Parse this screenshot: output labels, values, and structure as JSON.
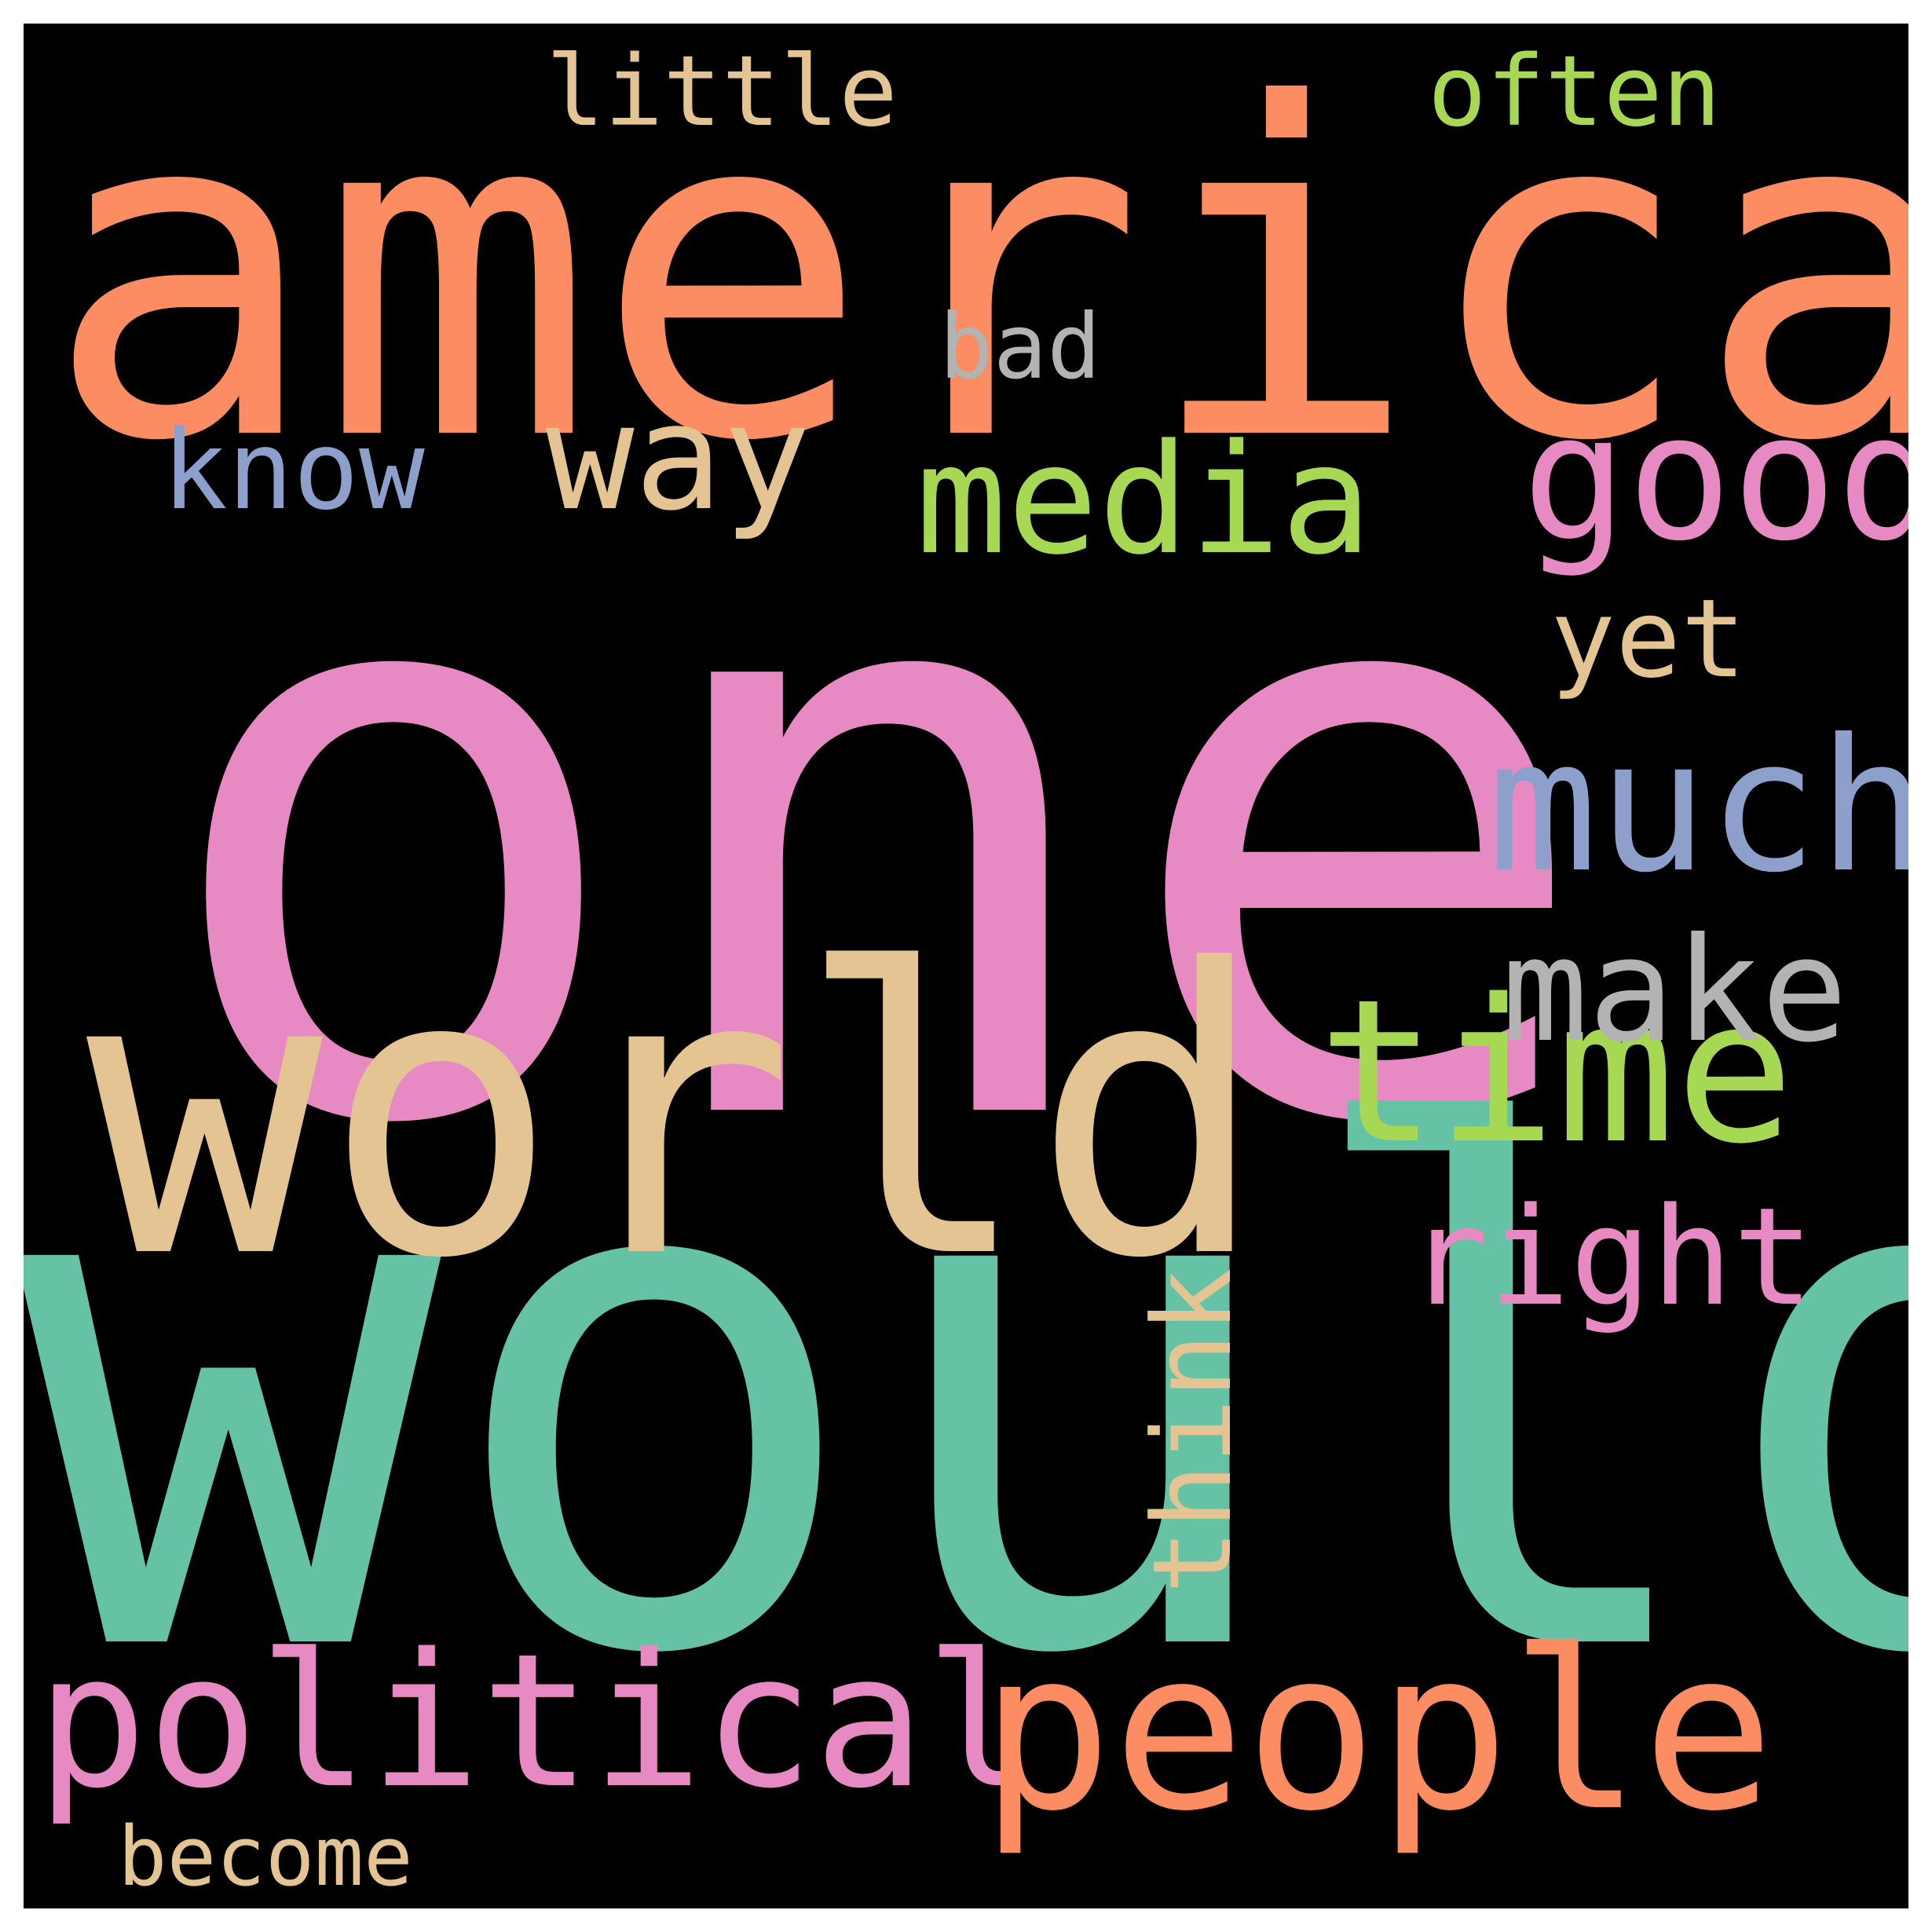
{
  "colors": {
    "background": "#000000",
    "frame_border": "#ffffff"
  },
  "words": [
    {
      "key": "one",
      "text": "one",
      "color": "#e78ac3"
    },
    {
      "key": "would",
      "text": "would",
      "color": "#66c2a5"
    },
    {
      "key": "america",
      "text": "america",
      "color": "#fc8d62"
    },
    {
      "key": "world",
      "text": "world",
      "color": "#e5c494"
    },
    {
      "key": "political",
      "text": "political",
      "color": "#e78ac3"
    },
    {
      "key": "people",
      "text": "people",
      "color": "#fc8d62"
    },
    {
      "key": "time",
      "text": "time",
      "color": "#a6d854"
    },
    {
      "key": "much",
      "text": "much",
      "color": "#8da0cb"
    },
    {
      "key": "good",
      "text": "good",
      "color": "#e78ac3"
    },
    {
      "key": "media",
      "text": "media",
      "color": "#a6d854"
    },
    {
      "key": "make",
      "text": "make",
      "color": "#b3b3b3"
    },
    {
      "key": "right",
      "text": "right",
      "color": "#e78ac3"
    },
    {
      "key": "way",
      "text": "way",
      "color": "#e5c494"
    },
    {
      "key": "think",
      "text": "think",
      "color": "#e5c494"
    },
    {
      "key": "know",
      "text": "know",
      "color": "#8da0cb"
    },
    {
      "key": "little",
      "text": "little",
      "color": "#e5c494"
    },
    {
      "key": "often",
      "text": "often",
      "color": "#a6d854"
    },
    {
      "key": "yet",
      "text": "yet",
      "color": "#e5c494"
    },
    {
      "key": "bad",
      "text": "bad",
      "color": "#b3b3b3"
    },
    {
      "key": "become",
      "text": "become",
      "color": "#e5c494"
    }
  ]
}
